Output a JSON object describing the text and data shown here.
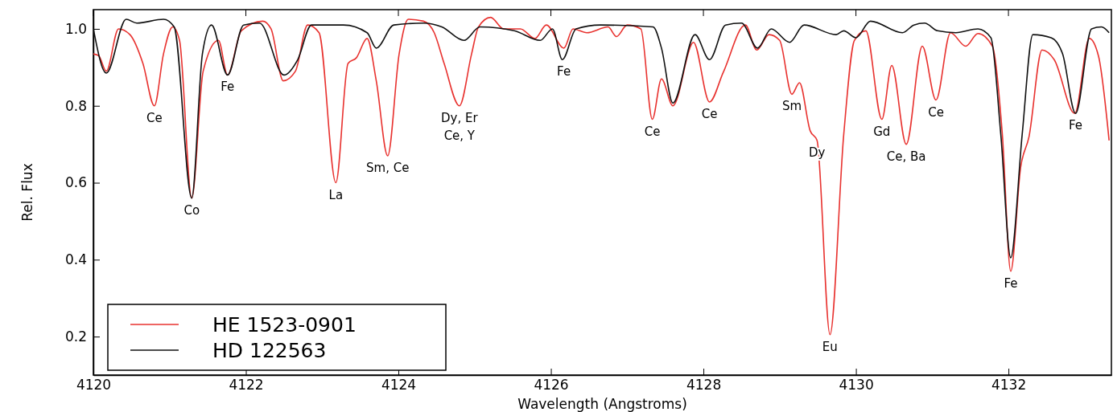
{
  "chart_data": {
    "type": "line",
    "xlabel": "Wavelength (Angstroms)",
    "ylabel": "Rel. Flux",
    "xlim": [
      4120,
      4133.35
    ],
    "ylim": [
      0.1,
      1.05
    ],
    "xticks": [
      4120,
      4122,
      4124,
      4126,
      4128,
      4130,
      4132
    ],
    "yticks": [
      {
        "value": 0.2,
        "label": "0.2"
      },
      {
        "value": 0.4,
        "label": "0.4"
      },
      {
        "value": 0.6,
        "label": "0.6"
      },
      {
        "value": 0.8,
        "label": "0.8"
      },
      {
        "value": 1.0,
        "label": "1.0"
      }
    ],
    "grid": false,
    "legend": "bottom left",
    "marker": "none",
    "line_style": "solid",
    "series": [
      {
        "name": "HE 1523-0901",
        "color": "#e8322f",
        "x": [
          4120.0,
          4120.07,
          4120.17,
          4120.33,
          4120.48,
          4120.65,
          4120.8,
          4120.92,
          4121.04,
          4121.13,
          4121.29,
          4121.44,
          4121.64,
          4121.76,
          4121.94,
          4122.22,
          4122.33,
          4122.49,
          4122.65,
          4122.81,
          4122.96,
          4123.18,
          4123.34,
          4123.45,
          4123.59,
          4123.71,
          4123.86,
          4124.01,
          4124.13,
          4124.33,
          4124.47,
          4124.6,
          4124.8,
          4124.96,
          4125.05,
          4125.21,
          4125.38,
          4125.6,
          4125.79,
          4125.94,
          4126.17,
          4126.29,
          4126.47,
          4126.75,
          4126.86,
          4127.0,
          4127.18,
          4127.33,
          4127.45,
          4127.6,
          4127.87,
          4128.08,
          4128.26,
          4128.55,
          4128.7,
          4128.86,
          4129.0,
          4129.16,
          4129.26,
          4129.4,
          4129.49,
          4129.66,
          4129.84,
          4129.98,
          4130.13,
          4130.34,
          4130.47,
          4130.66,
          4130.87,
          4131.05,
          4131.24,
          4131.44,
          4131.6,
          4131.79,
          4131.92,
          4132.03,
          4132.16,
          4132.27,
          4132.44,
          4132.6,
          4132.87,
          4133.06,
          4133.18,
          4133.32
        ],
        "values": [
          0.935,
          0.93,
          0.89,
          1.0,
          0.985,
          0.91,
          0.8,
          0.935,
          1.005,
          0.97,
          0.56,
          0.89,
          0.97,
          0.88,
          0.995,
          1.02,
          1.0,
          0.865,
          0.89,
          1.01,
          0.99,
          0.6,
          0.91,
          0.925,
          0.975,
          0.865,
          0.67,
          0.935,
          1.025,
          1.02,
          0.99,
          0.91,
          0.8,
          0.935,
          1.005,
          1.03,
          1.0,
          1.0,
          0.975,
          1.01,
          0.95,
          1.0,
          0.99,
          1.005,
          0.98,
          1.01,
          1.0,
          0.765,
          0.87,
          0.8,
          0.965,
          0.81,
          0.887,
          1.01,
          0.945,
          0.985,
          0.97,
          0.83,
          0.86,
          0.735,
          0.71,
          0.205,
          0.725,
          0.97,
          0.995,
          0.765,
          0.905,
          0.7,
          0.955,
          0.815,
          0.99,
          0.955,
          0.988,
          0.955,
          0.725,
          0.37,
          0.64,
          0.72,
          0.945,
          0.92,
          0.78,
          0.975,
          0.93,
          0.71
        ]
      },
      {
        "name": "HD 122563",
        "color": "#111111",
        "x": [
          4120.0,
          4120.17,
          4120.43,
          4120.57,
          4120.92,
          4121.06,
          4121.29,
          4121.43,
          4121.55,
          4121.76,
          4121.97,
          4122.18,
          4122.5,
          4122.68,
          4122.86,
          4123.28,
          4123.59,
          4123.71,
          4123.94,
          4124.33,
          4124.57,
          4124.86,
          4125.07,
          4125.52,
          4125.86,
          4126.02,
          4126.15,
          4126.33,
          4126.65,
          4127.34,
          4127.45,
          4127.6,
          4127.89,
          4128.08,
          4128.29,
          4128.5,
          4128.71,
          4128.89,
          4129.13,
          4129.32,
          4129.74,
          4129.84,
          4130.0,
          4130.19,
          4130.61,
          4130.76,
          4130.9,
          4131.07,
          4131.31,
          4131.6,
          4131.77,
          4131.9,
          4132.03,
          4132.18,
          4132.32,
          4132.56,
          4132.71,
          4132.88,
          4133.09,
          4133.22,
          4133.32
        ],
        "values": [
          1.0,
          0.885,
          1.025,
          1.015,
          1.025,
          1.005,
          0.56,
          0.935,
          1.01,
          0.88,
          1.01,
          1.015,
          0.88,
          0.92,
          1.01,
          1.01,
          0.99,
          0.95,
          1.01,
          1.015,
          1.005,
          0.97,
          1.005,
          0.995,
          0.97,
          1.0,
          0.92,
          1.0,
          1.01,
          1.005,
          0.95,
          0.807,
          0.985,
          0.92,
          1.01,
          1.015,
          0.95,
          1.0,
          0.965,
          1.01,
          0.985,
          0.995,
          0.977,
          1.02,
          0.99,
          1.01,
          1.015,
          0.995,
          0.99,
          1.0,
          0.977,
          0.725,
          0.405,
          0.725,
          0.985,
          0.977,
          0.935,
          0.78,
          1.0,
          1.005,
          0.99
        ]
      }
    ],
    "annotations": [
      {
        "text": "Ce",
        "x": 4120.8,
        "y": 0.8
      },
      {
        "text": "Co",
        "x": 4121.29,
        "y": 0.56
      },
      {
        "text": "Fe",
        "x": 4121.76,
        "y": 0.88
      },
      {
        "text": "La",
        "x": 4123.18,
        "y": 0.6
      },
      {
        "text": "Sm, Ce",
        "x": 4123.86,
        "y": 0.67
      },
      {
        "text": "Dy, Er\nCe, Y",
        "x": 4124.8,
        "y": 0.8
      },
      {
        "text": "Fe",
        "x": 4126.17,
        "y": 0.92
      },
      {
        "text": "Ce",
        "x": 4127.33,
        "y": 0.765
      },
      {
        "text": "Ce",
        "x": 4128.08,
        "y": 0.81
      },
      {
        "text": "Sm",
        "x": 4129.16,
        "y": 0.83
      },
      {
        "text": "Dy",
        "x": 4129.49,
        "y": 0.71
      },
      {
        "text": "Eu",
        "x": 4129.66,
        "y": 0.205
      },
      {
        "text": "Gd",
        "x": 4130.34,
        "y": 0.765
      },
      {
        "text": "Ce, Ba",
        "x": 4130.66,
        "y": 0.7
      },
      {
        "text": "Ce",
        "x": 4131.05,
        "y": 0.815
      },
      {
        "text": "Fe",
        "x": 4132.03,
        "y": 0.37
      },
      {
        "text": "Fe",
        "x": 4132.88,
        "y": 0.78
      }
    ]
  }
}
